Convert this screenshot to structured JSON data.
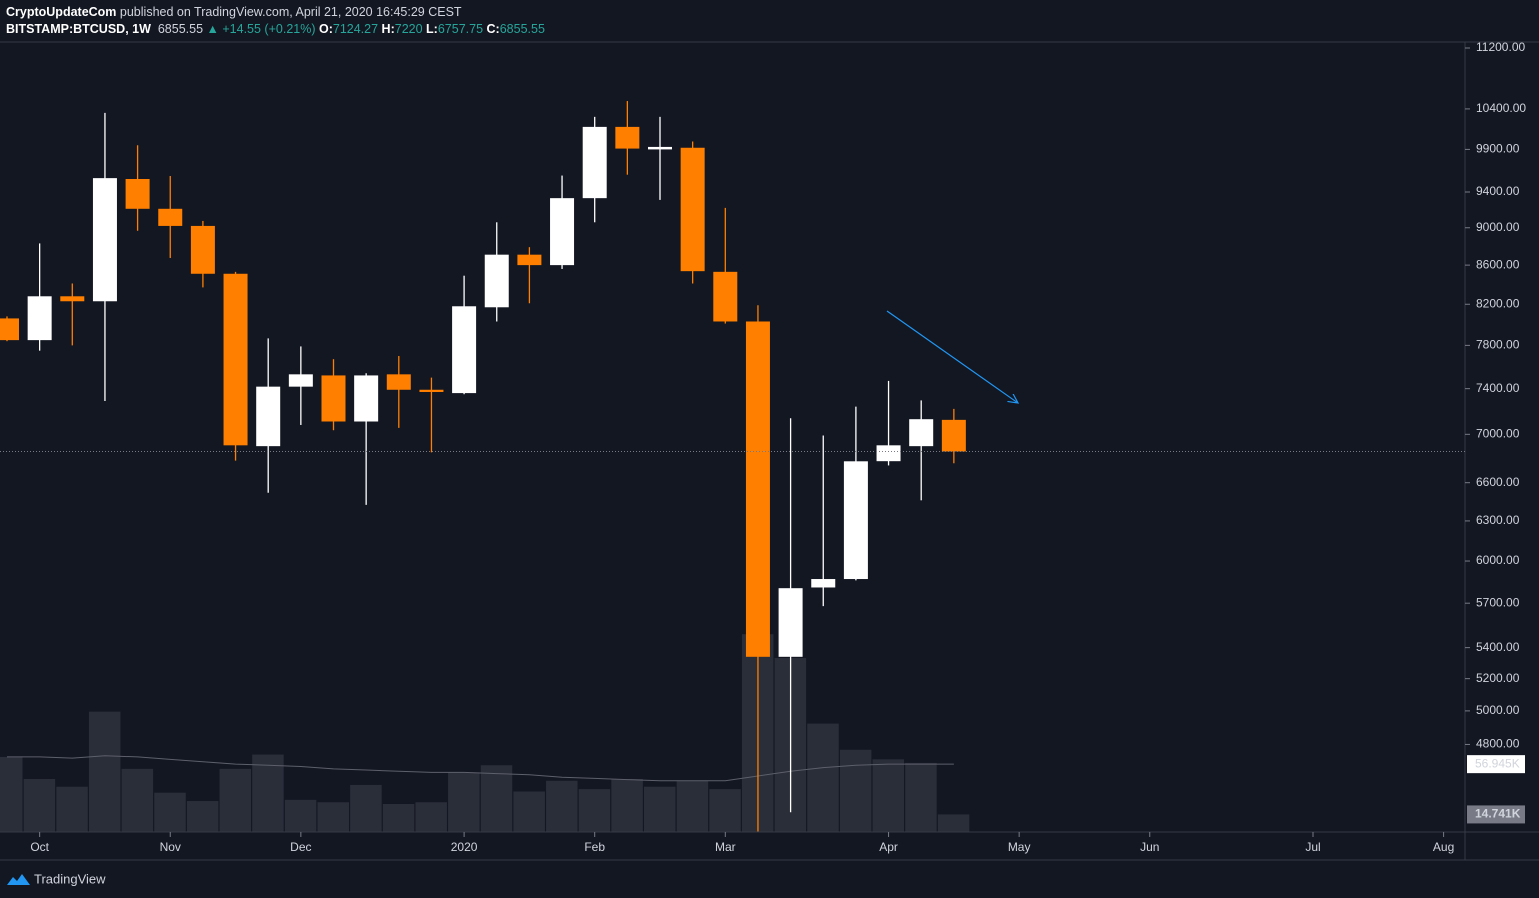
{
  "header": {
    "publisher": "CryptoUpdateCom",
    "published": "published on TradingView.com, April 21, 2020 16:45:29 CEST",
    "symbol": "BITSTAMP:BTCUSD, 1W",
    "change": "▲ +14.55 (+0.21%)",
    "ohlc_labels": [
      "O:",
      "H:",
      "L:",
      "C:"
    ]
  },
  "footer": {
    "brand": "TradingView"
  },
  "chart_data": {
    "type": "candlestick",
    "categories": [
      null,
      "Oct",
      null,
      null,
      null,
      "Nov",
      null,
      null,
      null,
      "Dec",
      null,
      null,
      null,
      null,
      "2020",
      null,
      null,
      null,
      "Feb",
      null,
      null,
      null,
      "Mar",
      null,
      null,
      null,
      null,
      "Apr",
      null,
      null,
      null,
      "May",
      null,
      null,
      null,
      "Jun",
      null,
      null,
      null,
      null,
      "Jul",
      null,
      null,
      null,
      "Aug"
    ],
    "open": [
      8060,
      7850,
      8280,
      8230,
      9550,
      9210,
      9020,
      8510,
      6900,
      7418,
      7520,
      7110,
      7530,
      7390,
      7360,
      8170,
      8710,
      8600,
      9330,
      10175,
      9900,
      9920,
      8530,
      8030,
      5340,
      5810,
      5870,
      6775,
      6900,
      7124.27,
      null,
      null,
      null,
      null,
      null,
      null,
      null,
      null,
      null,
      null,
      null,
      null,
      null,
      null,
      null
    ],
    "high": [
      8080,
      8830,
      8410,
      10350,
      9950,
      9585,
      9075,
      8530,
      7867,
      7790,
      7670,
      7540,
      7700,
      7500,
      8490,
      9060,
      8790,
      9590,
      10300,
      10500,
      10300,
      9995,
      9220,
      8190,
      7138,
      6990,
      7240,
      7470,
      7295,
      7220,
      null,
      null,
      null,
      null,
      null,
      null,
      null,
      null,
      null,
      null,
      null,
      null,
      null,
      null,
      null
    ],
    "low": [
      7840,
      7750,
      7800,
      7290,
      8967,
      8675,
      8370,
      6780,
      6520,
      7080,
      7035,
      6424,
      7055,
      6848,
      7350,
      8030,
      8210,
      8560,
      9060,
      9600,
      9310,
      8410,
      8010,
      3850,
      4420,
      5680,
      5860,
      6740,
      6460,
      6757.75,
      null,
      null,
      null,
      null,
      null,
      null,
      null,
      null,
      null,
      null,
      null,
      null,
      null,
      null,
      null
    ],
    "close": [
      7850,
      8280,
      8230,
      9560,
      9210,
      9020,
      8510,
      6907,
      7418,
      7530,
      7110,
      7520,
      7390,
      7370,
      8180,
      8710,
      8600,
      9330,
      10175,
      9910,
      9930,
      8537,
      8030,
      5340,
      5805,
      5870,
      6774,
      6907,
      7130,
      6855.55,
      null,
      null,
      null,
      null,
      null,
      null,
      null,
      null,
      null,
      null,
      null,
      null,
      null,
      null,
      null
    ],
    "up_color": "#ffffff",
    "down_color": "#ff7f00",
    "log_scale": true,
    "ylim": [
      4315,
      11282
    ],
    "yticks": [
      {
        "value": 11200,
        "label": "11200.00"
      },
      {
        "value": 10400,
        "label": "10400.00"
      },
      {
        "value": 9900,
        "label": "9900.00"
      },
      {
        "value": 9400,
        "label": "9400.00"
      },
      {
        "value": 9000,
        "label": "9000.00"
      },
      {
        "value": 8600,
        "label": "8600.00"
      },
      {
        "value": 8200,
        "label": "8200.00"
      },
      {
        "value": 7800,
        "label": "7800.00"
      },
      {
        "value": 7400,
        "label": "7400.00"
      },
      {
        "value": 7000,
        "label": "7000.00"
      },
      {
        "value": 6600,
        "label": "6600.00"
      },
      {
        "value": 6300,
        "label": "6300.00"
      },
      {
        "value": 6000,
        "label": "6000.00"
      },
      {
        "value": 5700,
        "label": "5700.00"
      },
      {
        "value": 5400,
        "label": "5400.00"
      },
      {
        "value": 5200,
        "label": "5200.00"
      },
      {
        "value": 5000,
        "label": "5000.00"
      },
      {
        "value": 4800,
        "label": "4800.00"
      }
    ],
    "volume": [
      63,
      44.5,
      38,
      101,
      53,
      33,
      26,
      53,
      65,
      27,
      25,
      39.5,
      23.5,
      25,
      50,
      56,
      34,
      43,
      36,
      44.5,
      38,
      43,
      36,
      166,
      146,
      91,
      69,
      61,
      58,
      14.741,
      null,
      null,
      null,
      null,
      null,
      null,
      null,
      null,
      null,
      null,
      null,
      null,
      null,
      null,
      null
    ],
    "volume_label": "14.741K",
    "volume_color": "#2a2e39",
    "volume_ma": [
      63,
      63,
      62,
      64,
      63,
      61,
      59,
      57,
      56,
      55,
      53,
      52,
      51,
      50,
      50,
      49,
      48,
      46,
      45,
      44,
      43,
      43,
      43,
      47,
      51,
      54,
      56,
      57,
      57,
      56.945,
      null,
      null,
      null,
      null,
      null,
      null,
      null,
      null,
      null,
      null,
      null,
      null,
      null,
      null,
      null
    ],
    "volume_ma_label": "56.945K",
    "volume_ma_color": "#5d606b",
    "y2lim": [
      0,
      663
    ]
  }
}
